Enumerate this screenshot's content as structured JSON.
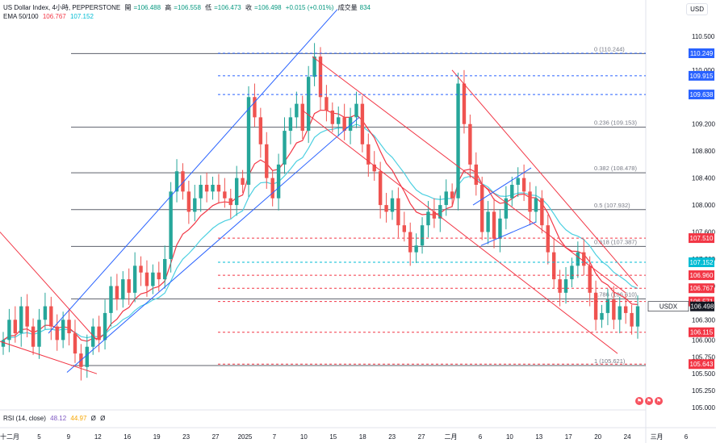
{
  "header": {
    "symbol": "US Dollar Index, 4小時, PEPPERSTONE",
    "open_label": "開",
    "open": "=106.488",
    "high_label": "高",
    "high": "=106.558",
    "low_label": "低",
    "low": "=106.473",
    "close_label": "收",
    "close": "=106.498",
    "change": "+0.015 (+0.01%)",
    "volume_label": "成交量",
    "volume": "834",
    "ema_label": "EMA 50/100",
    "ema50": "106.767",
    "ema100": "107.152"
  },
  "rsi": {
    "label": "RSI (14, close)",
    "value1": "48.12",
    "value2": "44.97",
    "value3": "Ø",
    "value4": "Ø"
  },
  "currency_label": "USD",
  "colors": {
    "up": "#26a69a",
    "down": "#ef5350",
    "ema50": "#f23645",
    "ema100": "#4dd0e1",
    "fib": "#5d606b",
    "channel_blue": "#2962ff",
    "channel_red": "#f23645",
    "dash_blue": "#2962ff",
    "dash_red": "#f23645"
  },
  "chart_data": {
    "type": "candlestick",
    "price_axis_ticks": [
      "110.500",
      "110.000",
      "109.200",
      "108.800",
      "108.400",
      "108.000",
      "107.600",
      "107.200",
      "106.800",
      "106.300",
      "106.000",
      "105.750",
      "105.500",
      "105.250",
      "105.000"
    ],
    "time_axis_ticks": [
      "十二月",
      "5",
      "9",
      "12",
      "16",
      "19",
      "23",
      "27",
      "2025",
      "7",
      "10",
      "15",
      "18",
      "23",
      "27",
      "二月",
      "6",
      "10",
      "13",
      "17",
      "20",
      "24",
      "三月",
      "6"
    ],
    "ylim": [
      105.0,
      110.6
    ],
    "fib_levels": [
      {
        "label": "0 (110.244)",
        "value": 110.244
      },
      {
        "label": "0.236 (109.153)",
        "value": 109.153
      },
      {
        "label": "0.382 (108.478)",
        "value": 108.478
      },
      {
        "label": "0.5 (107.932)",
        "value": 107.932
      },
      {
        "label": "0.618 (107.387)",
        "value": 107.387
      },
      {
        "label": "0.786 (106.610)",
        "value": 106.61
      },
      {
        "label": "1 (105.621)",
        "value": 105.621
      }
    ],
    "price_labels": [
      {
        "text": "110.249",
        "value": 110.249,
        "color": "#2962ff"
      },
      {
        "text": "109.915",
        "value": 109.915,
        "color": "#2962ff"
      },
      {
        "text": "109.638",
        "value": 109.638,
        "color": "#2962ff"
      },
      {
        "text": "107.510",
        "value": 107.51,
        "color": "#f23645"
      },
      {
        "text": "107.152",
        "value": 107.152,
        "color": "#00bcd4"
      },
      {
        "text": "106.960",
        "value": 106.96,
        "color": "#f23645"
      },
      {
        "text": "106.767",
        "value": 106.767,
        "color": "#f23645"
      },
      {
        "text": "106.571",
        "value": 106.571,
        "color": "#f23645"
      },
      {
        "text": "106.498",
        "value": 106.498,
        "color": "#131722",
        "badge": "USDX"
      },
      {
        "text": "106.115",
        "value": 106.115,
        "color": "#f23645"
      },
      {
        "text": "105.643",
        "value": 105.643,
        "color": "#f23645"
      }
    ],
    "candles_close": [
      106.0,
      106.3,
      106.1,
      106.5,
      106.2,
      105.9,
      106.3,
      106.5,
      106.2,
      106.0,
      106.3,
      106.1,
      105.8,
      105.6,
      105.9,
      106.2,
      106.0,
      106.4,
      106.8,
      106.6,
      106.9,
      106.7,
      107.1,
      107.0,
      106.8,
      107.0,
      106.9,
      107.2,
      108.2,
      108.5,
      108.2,
      107.9,
      108.1,
      108.3,
      108.2,
      108.3,
      108.2,
      108.1,
      108.0,
      108.4,
      108.3,
      109.6,
      109.3,
      108.9,
      108.4,
      108.1,
      108.6,
      109.1,
      109.3,
      109.5,
      109.1,
      109.9,
      110.2,
      109.6,
      109.4,
      109.2,
      109.3,
      109.1,
      109.3,
      109.5,
      108.9,
      108.6,
      108.5,
      108.0,
      107.9,
      108.1,
      107.7,
      107.6,
      107.3,
      107.4,
      107.7,
      107.9,
      107.8,
      108.0,
      108.2,
      108.1,
      109.8,
      109.2,
      108.6,
      108.3,
      107.6,
      107.9,
      107.5,
      107.8,
      108.1,
      108.3,
      108.4,
      108.2,
      107.9,
      108.1,
      107.7,
      107.3,
      106.9,
      106.7,
      106.9,
      107.1,
      107.3,
      107.1,
      106.7,
      106.3,
      106.4,
      106.6,
      106.3,
      106.5,
      106.4,
      106.2,
      106.5
    ]
  }
}
